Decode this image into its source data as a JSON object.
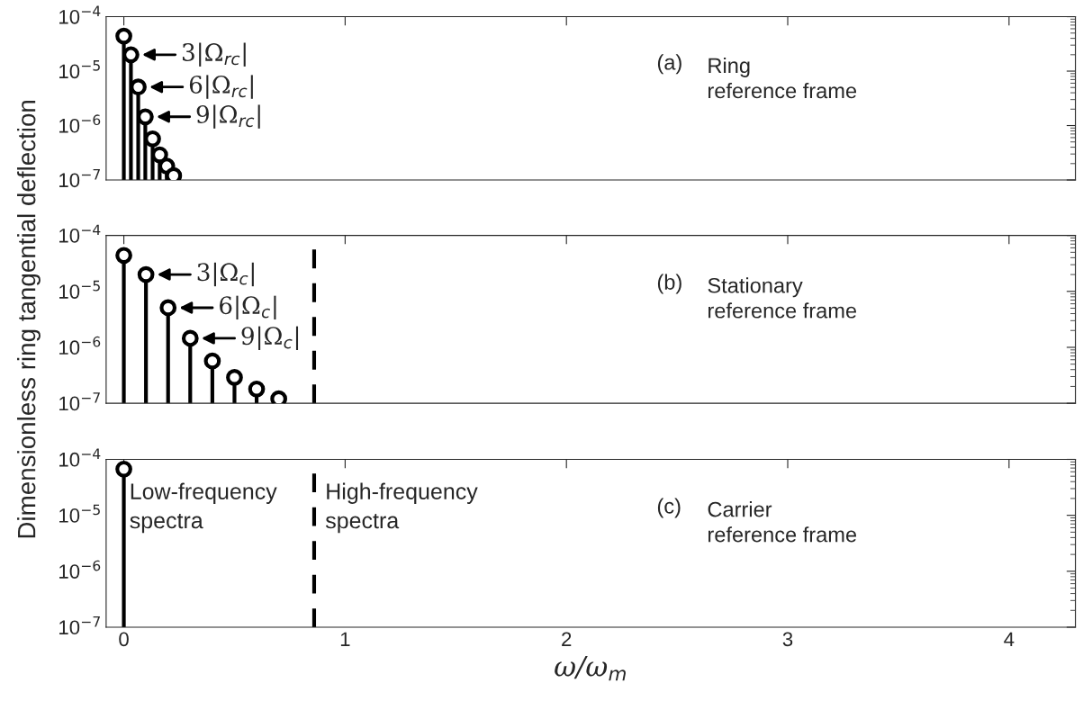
{
  "chart_data": [
    {
      "type": "lollipop",
      "x": [
        0,
        0.032,
        0.065,
        0.097,
        0.13,
        0.162,
        0.194,
        0.225
      ],
      "values": [
        4.4e-05,
        2e-05,
        5.1e-06,
        1.45e-06,
        5.7e-07,
        2.9e-07,
        1.8e-07,
        1.2e-07
      ],
      "color": "#000000",
      "marker": "circle",
      "xlim": [
        -0.08,
        4.3
      ],
      "ylim": [
        1e-07,
        0.0001
      ],
      "log": "y",
      "tick_labels": "y",
      "yticks": [
        {
          "value": 1e-07,
          "label": "10$^{−7}$"
        },
        {
          "value": 1e-06,
          "label": "10$^{−6}$"
        },
        {
          "value": 1e-05,
          "label": "10$^{−5}$"
        },
        {
          "value": 0.0001,
          "label": "10$^{−4}$"
        }
      ],
      "xticks": [
        0,
        1,
        2,
        3,
        4
      ],
      "annotations": [
        {
          "text": "3|Ω$_{rc}$|",
          "x": 0.032,
          "y": 2e-05
        },
        {
          "text": "6|Ω$_{rc}$|",
          "x": 0.065,
          "y": 5.1e-06
        },
        {
          "text": "9|Ω$_{rc}$|",
          "x": 0.097,
          "y": 1.45e-06
        },
        "(a)",
        "Ring\nreference frame"
      ]
    },
    {
      "type": "lollipop",
      "x": [
        0,
        0.1,
        0.2,
        0.3,
        0.4,
        0.5,
        0.6,
        0.7
      ],
      "values": [
        4.4e-05,
        2e-05,
        5.1e-06,
        1.45e-06,
        5.7e-07,
        2.9e-07,
        1.8e-07,
        1.2e-07
      ],
      "color": "#000000",
      "marker": "circle",
      "xlim": [
        -0.08,
        4.3
      ],
      "ylim": [
        1e-07,
        0.0001
      ],
      "log": "y",
      "tick_labels": "y",
      "yticks": [
        {
          "value": 1e-07,
          "label": "10$^{−7}$"
        },
        {
          "value": 1e-06,
          "label": "10$^{−6}$"
        },
        {
          "value": 1e-05,
          "label": "10$^{−5}$"
        },
        {
          "value": 0.0001,
          "label": "10$^{−4}$"
        }
      ],
      "xticks": [
        0,
        1,
        2,
        3,
        4
      ],
      "ylabel": "Dimensionless ring tangential deflection",
      "ref_lines": [
        {
          "axis": "x",
          "value": 0.86,
          "color": "#000000",
          "line_style": "dashed"
        }
      ],
      "annotations": [
        {
          "text": "3|Ω$_{c}$|",
          "x": 0.1,
          "y": 2e-05
        },
        {
          "text": "6|Ω$_{c}$|",
          "x": 0.2,
          "y": 5.1e-06
        },
        {
          "text": "9|Ω$_{c}$|",
          "x": 0.3,
          "y": 1.45e-06
        },
        "(b)",
        "Stationary\nreference frame"
      ]
    },
    {
      "type": "lollipop",
      "x": [
        0
      ],
      "values": [
        6.7e-05
      ],
      "color": "#000000",
      "marker": "circle",
      "xlim": [
        -0.08,
        4.3
      ],
      "ylim": [
        1e-07,
        0.0001
      ],
      "log": "y",
      "yticks": [
        {
          "value": 1e-07,
          "label": "10$^{−7}$"
        },
        {
          "value": 1e-06,
          "label": "10$^{−6}$"
        },
        {
          "value": 1e-05,
          "label": "10$^{−5}$"
        },
        {
          "value": 0.0001,
          "label": "10$^{−4}$"
        }
      ],
      "xticks": [
        0,
        1,
        2,
        3,
        4
      ],
      "xlabel": "ω/ω$_{m}$",
      "ref_lines": [
        {
          "axis": "x",
          "value": 0.86,
          "color": "#000000",
          "line_style": "dashed"
        }
      ],
      "annotations": [
        "Low-frequency\nspectra",
        "High-frequency\nspectra",
        "(c)",
        "Carrier\nreference frame"
      ]
    }
  ]
}
